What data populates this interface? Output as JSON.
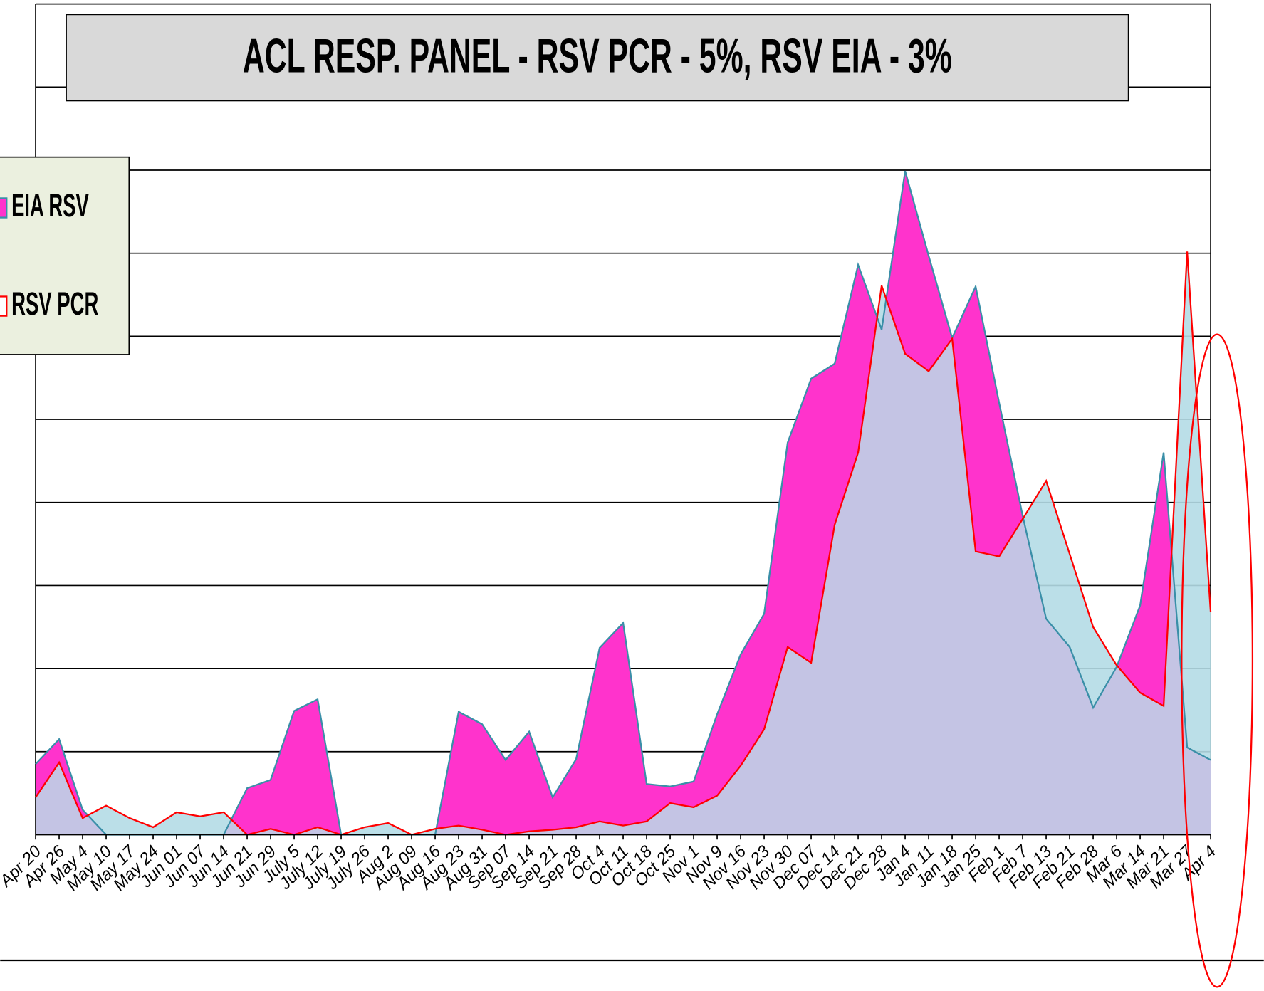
{
  "chart_data": {
    "type": "area",
    "title": "ACL RESP. PANEL -  RSV PCR - 5%, RSV EIA - 3%",
    "categories": [
      "Apr 20",
      "Apr 26",
      "May 4",
      "May 10",
      "May 17",
      "May 24",
      "Jun 01",
      "Jun 07",
      "Jun 14",
      "Jun 21",
      "Jun 29",
      "July 5",
      "July 12",
      "July 19",
      "July 26",
      "Aug 2",
      "Aug 09",
      "Aug 16",
      "Aug 23",
      "Aug 31",
      "Sep 07",
      "Sep 14",
      "Sep 21",
      "Sep 28",
      "Oct 4",
      "Oct 11",
      "Oct 18",
      "Oct 25",
      "Nov 1",
      "Nov 9",
      "Nov 16",
      "Nov 23",
      "Nov 30",
      "Dec 07",
      "Dec 14",
      "Dec 21",
      "Dec 28",
      "Jan 4",
      "Jan 11",
      "Jan 18",
      "Jan 25",
      "Feb 1",
      "Feb 7",
      "Feb 13",
      "Feb 21",
      "Feb 28",
      "Mar 6",
      "Mar 14",
      "Mar 21",
      "Mar 27",
      "Apr 4"
    ],
    "series": [
      {
        "name": "EIA RSV",
        "color": "#ff33cc",
        "values": [
          0.85,
          1.15,
          0.3,
          0,
          0,
          0,
          0,
          0,
          0,
          0.56,
          0.66,
          1.49,
          1.63,
          0,
          0,
          0,
          0,
          0,
          1.48,
          1.33,
          0.9,
          1.24,
          0.45,
          0.91,
          2.25,
          2.55,
          0.61,
          0.58,
          0.64,
          1.45,
          2.17,
          2.66,
          4.72,
          5.49,
          5.67,
          6.86,
          6.08,
          7.99,
          6.97,
          5.98,
          6.6,
          5.2,
          3.84,
          2.6,
          2.26,
          1.53,
          2.02,
          2.76,
          4.6,
          1.05,
          0.9
        ]
      },
      {
        "name": "RSV PCR",
        "color": "#ff0000",
        "values": [
          0.45,
          0.87,
          0.2,
          0.35,
          0.2,
          0.09,
          0.27,
          0.22,
          0.27,
          0,
          0.07,
          0,
          0.09,
          0,
          0.09,
          0.14,
          0,
          0.07,
          0.11,
          0.06,
          0,
          0.04,
          0.06,
          0.09,
          0.16,
          0.11,
          0.16,
          0.38,
          0.33,
          0.47,
          0.83,
          1.27,
          2.26,
          2.07,
          3.73,
          4.6,
          6.61,
          5.79,
          5.58,
          5.97,
          3.41,
          3.35,
          3.8,
          4.26,
          3.38,
          2.5,
          2.04,
          1.71,
          1.55,
          7.02,
          2.68
        ]
      }
    ],
    "ylim": [
      0,
      10
    ],
    "yticks": [
      0,
      1,
      2,
      3,
      4,
      5,
      6,
      7,
      8,
      9,
      10
    ],
    "grid": true
  }
}
